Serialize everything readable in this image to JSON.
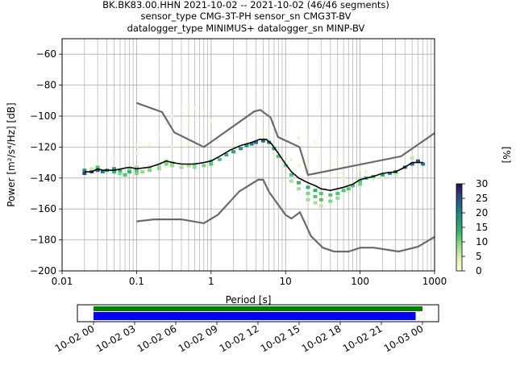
{
  "header": {
    "line1": "BK.BK83.00.HHN   2021-10-02 -- 2021-10-02  (46/46 segments)",
    "line2": "sensor_type CMG-3T-PH sensor_sn CMG3T-BV",
    "line3": "datalogger_type MINIMUS+ datalogger_sn MINP-BV"
  },
  "colors": {
    "nlnm_nhnm": "#6a6a6a",
    "mode": "#000000",
    "grid": "#b0b0b0",
    "timeline_green": "#008000",
    "timeline_blue": "#0000ff"
  },
  "chart_data": [
    {
      "type": "heatmap",
      "xlabel": "Period [s]",
      "ylabel": "Power [m²/s⁴/Hz] [dB]",
      "x_scale": "log",
      "xlim": [
        0.01,
        1000
      ],
      "ylim": [
        -200,
        -50
      ],
      "x_ticks": [
        {
          "v": 0.01,
          "label": "0.01"
        },
        {
          "v": 0.1,
          "label": "0.1"
        },
        {
          "v": 1,
          "label": "1"
        },
        {
          "v": 10,
          "label": "10"
        },
        {
          "v": 100,
          "label": "100"
        },
        {
          "v": 1000,
          "label": "1000"
        }
      ],
      "y_ticks": [
        {
          "v": -60,
          "label": "−60"
        },
        {
          "v": -80,
          "label": "−80"
        },
        {
          "v": -100,
          "label": "−100"
        },
        {
          "v": -120,
          "label": "−120"
        },
        {
          "v": -140,
          "label": "−140"
        },
        {
          "v": -160,
          "label": "−160"
        },
        {
          "v": -180,
          "label": "−180"
        },
        {
          "v": -200,
          "label": "−200"
        }
      ],
      "grid": true,
      "colorbar": {
        "label": "[%]",
        "range": [
          0,
          30
        ],
        "ticks": [
          {
            "v": 0,
            "label": "0"
          },
          {
            "v": 5,
            "label": "5"
          },
          {
            "v": 10,
            "label": "10"
          },
          {
            "v": 15,
            "label": "15"
          },
          {
            "v": 20,
            "label": "20"
          },
          {
            "v": 25,
            "label": "25"
          },
          {
            "v": 30,
            "label": "30"
          }
        ]
      },
      "noise_models": {
        "NHNM": [
          [
            0.1,
            -91.5
          ],
          [
            0.22,
            -97.4
          ],
          [
            0.32,
            -110.5
          ],
          [
            0.8,
            -120
          ],
          [
            3.8,
            -97
          ],
          [
            4.6,
            -96
          ],
          [
            6.3,
            -101
          ],
          [
            7.9,
            -113.5
          ],
          [
            15.4,
            -120
          ],
          [
            20,
            -138
          ],
          [
            354.8,
            -126
          ],
          [
            1000,
            -111
          ]
        ],
        "NLNM": [
          [
            0.1,
            -168
          ],
          [
            0.17,
            -166.7
          ],
          [
            0.4,
            -166.7
          ],
          [
            0.8,
            -169.2
          ],
          [
            1.24,
            -163.7
          ],
          [
            2.4,
            -148.6
          ],
          [
            4.3,
            -141.1
          ],
          [
            5.0,
            -141.1
          ],
          [
            6.0,
            -149
          ],
          [
            10.0,
            -163.8
          ],
          [
            12.0,
            -166.2
          ],
          [
            15.6,
            -162.1
          ],
          [
            21.9,
            -177.5
          ],
          [
            31.6,
            -185
          ],
          [
            45.0,
            -187.5
          ],
          [
            70.0,
            -187.5
          ],
          [
            101.0,
            -185
          ],
          [
            154.0,
            -185
          ],
          [
            328.0,
            -187.5
          ],
          [
            600.0,
            -184.4
          ],
          [
            1000.0,
            -178
          ]
        ]
      },
      "mode_curve": [
        [
          0.02,
          -136
        ],
        [
          0.025,
          -136
        ],
        [
          0.03,
          -134
        ],
        [
          0.035,
          -135
        ],
        [
          0.05,
          -135
        ],
        [
          0.08,
          -133
        ],
        [
          0.1,
          -134
        ],
        [
          0.15,
          -133
        ],
        [
          0.2,
          -131
        ],
        [
          0.25,
          -129
        ],
        [
          0.3,
          -130
        ],
        [
          0.4,
          -131
        ],
        [
          0.6,
          -131
        ],
        [
          0.8,
          -130
        ],
        [
          1.0,
          -129
        ],
        [
          1.3,
          -126
        ],
        [
          1.8,
          -122
        ],
        [
          2.5,
          -119
        ],
        [
          3.5,
          -117
        ],
        [
          4.5,
          -115
        ],
        [
          5.5,
          -115
        ],
        [
          6.5,
          -118
        ],
        [
          8.0,
          -124
        ],
        [
          10,
          -131
        ],
        [
          12,
          -136
        ],
        [
          15,
          -140
        ],
        [
          20,
          -143
        ],
        [
          25,
          -145
        ],
        [
          30,
          -147
        ],
        [
          40,
          -148
        ],
        [
          60,
          -146
        ],
        [
          80,
          -144
        ],
        [
          100,
          -141
        ],
        [
          150,
          -139
        ],
        [
          200,
          -137
        ],
        [
          300,
          -136
        ],
        [
          400,
          -133
        ],
        [
          500,
          -130
        ],
        [
          700,
          -130
        ]
      ],
      "density": [
        {
          "p": 0.02,
          "db": -137,
          "pct": 26
        },
        {
          "p": 0.02,
          "db": -135,
          "pct": 18
        },
        {
          "p": 0.025,
          "db": -136,
          "pct": 24
        },
        {
          "p": 0.025,
          "db": -134,
          "pct": 6
        },
        {
          "p": 0.03,
          "db": -135,
          "pct": 25
        },
        {
          "p": 0.03,
          "db": -133,
          "pct": 12
        },
        {
          "p": 0.035,
          "db": -136,
          "pct": 20
        },
        {
          "p": 0.04,
          "db": -135,
          "pct": 18
        },
        {
          "p": 0.05,
          "db": -136,
          "pct": 14
        },
        {
          "p": 0.05,
          "db": -134,
          "pct": 18
        },
        {
          "p": 0.06,
          "db": -137,
          "pct": 10
        },
        {
          "p": 0.06,
          "db": -135,
          "pct": 14
        },
        {
          "p": 0.07,
          "db": -138,
          "pct": 12
        },
        {
          "p": 0.08,
          "db": -136,
          "pct": 14
        },
        {
          "p": 0.08,
          "db": -134,
          "pct": 10
        },
        {
          "p": 0.1,
          "db": -137,
          "pct": 10
        },
        {
          "p": 0.1,
          "db": -135,
          "pct": 12
        },
        {
          "p": 0.1,
          "db": -133,
          "pct": 8
        },
        {
          "p": 0.12,
          "db": -136,
          "pct": 9
        },
        {
          "p": 0.15,
          "db": -135,
          "pct": 10
        },
        {
          "p": 0.15,
          "db": -133,
          "pct": 8
        },
        {
          "p": 0.2,
          "db": -134,
          "pct": 9
        },
        {
          "p": 0.2,
          "db": -132,
          "pct": 8
        },
        {
          "p": 0.25,
          "db": -131,
          "pct": 10
        },
        {
          "p": 0.25,
          "db": -129,
          "pct": 8
        },
        {
          "p": 0.3,
          "db": -132,
          "pct": 9
        },
        {
          "p": 0.3,
          "db": -130,
          "pct": 8
        },
        {
          "p": 0.4,
          "db": -133,
          "pct": 8
        },
        {
          "p": 0.5,
          "db": -132,
          "pct": 8
        },
        {
          "p": 0.6,
          "db": -133,
          "pct": 9
        },
        {
          "p": 0.6,
          "db": -131,
          "pct": 8
        },
        {
          "p": 0.8,
          "db": -132,
          "pct": 10
        },
        {
          "p": 1.0,
          "db": -131,
          "pct": 12
        },
        {
          "p": 1.0,
          "db": -129,
          "pct": 10
        },
        {
          "p": 1.3,
          "db": -128,
          "pct": 12
        },
        {
          "p": 1.6,
          "db": -125,
          "pct": 14
        },
        {
          "p": 2.0,
          "db": -123,
          "pct": 16
        },
        {
          "p": 2.5,
          "db": -121,
          "pct": 18
        },
        {
          "p": 3.0,
          "db": -119,
          "pct": 18
        },
        {
          "p": 3.5,
          "db": -118,
          "pct": 20
        },
        {
          "p": 4.0,
          "db": -117,
          "pct": 22
        },
        {
          "p": 5.0,
          "db": -116,
          "pct": 22
        },
        {
          "p": 6.0,
          "db": -117,
          "pct": 20
        },
        {
          "p": 7.0,
          "db": -121,
          "pct": 16
        },
        {
          "p": 8.0,
          "db": -126,
          "pct": 12
        },
        {
          "p": 10,
          "db": -132,
          "pct": 10
        },
        {
          "p": 12,
          "db": -138,
          "pct": 12
        },
        {
          "p": 12,
          "db": -142,
          "pct": 8
        },
        {
          "p": 15,
          "db": -143,
          "pct": 14
        },
        {
          "p": 15,
          "db": -147,
          "pct": 8
        },
        {
          "p": 20,
          "db": -146,
          "pct": 14
        },
        {
          "p": 20,
          "db": -150,
          "pct": 10
        },
        {
          "p": 20,
          "db": -154,
          "pct": 8
        },
        {
          "p": 25,
          "db": -148,
          "pct": 14
        },
        {
          "p": 25,
          "db": -152,
          "pct": 12
        },
        {
          "p": 25,
          "db": -156,
          "pct": 8
        },
        {
          "p": 30,
          "db": -150,
          "pct": 12
        },
        {
          "p": 30,
          "db": -154,
          "pct": 12
        },
        {
          "p": 30,
          "db": -158,
          "pct": 6
        },
        {
          "p": 40,
          "db": -151,
          "pct": 12
        },
        {
          "p": 40,
          "db": -155,
          "pct": 10
        },
        {
          "p": 50,
          "db": -150,
          "pct": 12
        },
        {
          "p": 50,
          "db": -153,
          "pct": 9
        },
        {
          "p": 60,
          "db": -148,
          "pct": 12
        },
        {
          "p": 70,
          "db": -147,
          "pct": 12
        },
        {
          "p": 80,
          "db": -145,
          "pct": 12
        },
        {
          "p": 100,
          "db": -142,
          "pct": 12
        },
        {
          "p": 100,
          "db": -144,
          "pct": 10
        },
        {
          "p": 120,
          "db": -140,
          "pct": 14
        },
        {
          "p": 150,
          "db": -139,
          "pct": 14
        },
        {
          "p": 200,
          "db": -138,
          "pct": 16
        },
        {
          "p": 250,
          "db": -137,
          "pct": 18
        },
        {
          "p": 300,
          "db": -136,
          "pct": 20
        },
        {
          "p": 400,
          "db": -133,
          "pct": 22
        },
        {
          "p": 500,
          "db": -131,
          "pct": 22
        },
        {
          "p": 600,
          "db": -129,
          "pct": 24
        },
        {
          "p": 700,
          "db": -131,
          "pct": 20
        },
        {
          "p": 0.15,
          "db": -118,
          "pct": 2
        },
        {
          "p": 0.2,
          "db": -112,
          "pct": 2
        },
        {
          "p": 0.25,
          "db": -105,
          "pct": 2
        },
        {
          "p": 0.3,
          "db": -100,
          "pct": 2
        },
        {
          "p": 0.4,
          "db": -96,
          "pct": 2
        },
        {
          "p": 0.5,
          "db": -94,
          "pct": 2
        },
        {
          "p": 0.6,
          "db": -95,
          "pct": 2
        },
        {
          "p": 0.8,
          "db": -98,
          "pct": 2
        },
        {
          "p": 1.0,
          "db": -103,
          "pct": 2
        },
        {
          "p": 0.3,
          "db": -110,
          "pct": 3
        },
        {
          "p": 0.4,
          "db": -106,
          "pct": 3
        },
        {
          "p": 0.5,
          "db": -104,
          "pct": 3
        },
        {
          "p": 0.3,
          "db": -120,
          "pct": 3
        },
        {
          "p": 0.5,
          "db": -118,
          "pct": 3
        },
        {
          "p": 0.8,
          "db": -112,
          "pct": 3
        },
        {
          "p": 1.2,
          "db": -115,
          "pct": 3
        },
        {
          "p": 0.03,
          "db": -130,
          "pct": 3
        },
        {
          "p": 0.05,
          "db": -127,
          "pct": 3
        },
        {
          "p": 0.07,
          "db": -125,
          "pct": 2
        },
        {
          "p": 0.1,
          "db": -124,
          "pct": 3
        },
        {
          "p": 0.1,
          "db": -119,
          "pct": 2
        },
        {
          "p": 2.0,
          "db": -118,
          "pct": 3
        },
        {
          "p": 3.0,
          "db": -116,
          "pct": 3
        },
        {
          "p": 5.0,
          "db": -112,
          "pct": 3
        },
        {
          "p": 6.0,
          "db": -112,
          "pct": 3
        },
        {
          "p": 8.0,
          "db": -113,
          "pct": 2
        },
        {
          "p": 10,
          "db": -114,
          "pct": 2
        },
        {
          "p": 15,
          "db": -114,
          "pct": 3
        },
        {
          "p": 20,
          "db": -117,
          "pct": 3
        },
        {
          "p": 25,
          "db": -117,
          "pct": 2
        },
        {
          "p": 30,
          "db": -122,
          "pct": 3
        },
        {
          "p": 40,
          "db": -127,
          "pct": 3
        },
        {
          "p": 50,
          "db": -128,
          "pct": 3
        },
        {
          "p": 60,
          "db": -131,
          "pct": 2
        },
        {
          "p": 80,
          "db": -132,
          "pct": 3
        },
        {
          "p": 100,
          "db": -134,
          "pct": 3
        },
        {
          "p": 120,
          "db": -136,
          "pct": 3
        },
        {
          "p": 12,
          "db": -128,
          "pct": 3
        },
        {
          "p": 15,
          "db": -132,
          "pct": 3
        },
        {
          "p": 20,
          "db": -133,
          "pct": 3
        },
        {
          "p": 30,
          "db": -137,
          "pct": 3
        },
        {
          "p": 40,
          "db": -139,
          "pct": 3
        },
        {
          "p": 60,
          "db": -140,
          "pct": 3
        },
        {
          "p": 150,
          "db": -141,
          "pct": 4
        },
        {
          "p": 200,
          "db": -140,
          "pct": 4
        },
        {
          "p": 300,
          "db": -138,
          "pct": 5
        },
        {
          "p": 500,
          "db": -127,
          "pct": 6
        }
      ]
    },
    {
      "type": "timeline",
      "x_range": [
        "10-02 00",
        "10-03 00"
      ],
      "x_ticks": [
        "10-02 00",
        "10-02 03",
        "10-02 06",
        "10-02 09",
        "10-02 12",
        "10-02 15",
        "10-02 18",
        "10-02 21",
        "10-03 00"
      ],
      "series": [
        {
          "color": "#008000",
          "start_hours": 0,
          "end_hours": 24.0
        },
        {
          "color": "#0000ff",
          "start_hours": 0,
          "end_hours": 23.5
        }
      ]
    }
  ]
}
